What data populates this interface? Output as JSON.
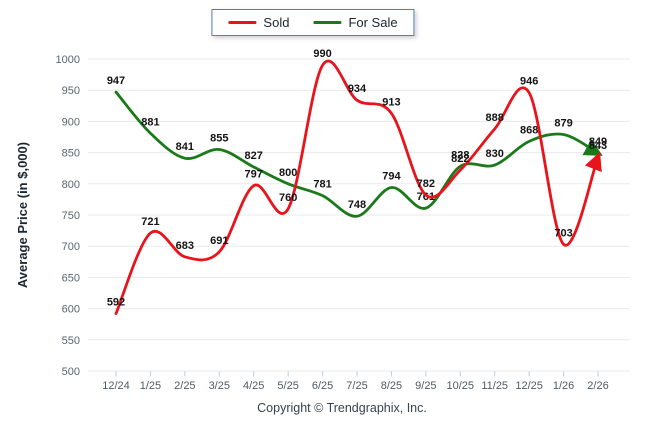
{
  "legend": {
    "items": [
      {
        "label": "Sold",
        "color": "#e8131b"
      },
      {
        "label": "For Sale",
        "color": "#1a7a1a"
      }
    ]
  },
  "footer": {
    "copyright": "Copyright © Trendgraphix, Inc."
  },
  "chart_data": {
    "type": "line",
    "title": "",
    "xlabel": "",
    "ylabel": "Average Price (in $,000)",
    "ylim": [
      500,
      1000
    ],
    "ytick_step": 50,
    "grid": true,
    "legend_position": "top-center",
    "categories": [
      "12/24",
      "1/25",
      "2/25",
      "3/25",
      "4/25",
      "5/25",
      "6/25",
      "7/25",
      "8/25",
      "9/25",
      "10/25",
      "11/25",
      "12/25",
      "1/26",
      "2/26"
    ],
    "series": [
      {
        "name": "Sold",
        "color": "#e8131b",
        "values": [
          592,
          721,
          683,
          691,
          797,
          760,
          990,
          934,
          913,
          782,
          822,
          888,
          946,
          703,
          843
        ]
      },
      {
        "name": "For Sale",
        "color": "#1a7a1a",
        "values": [
          947,
          881,
          841,
          855,
          827,
          800,
          781,
          748,
          794,
          761,
          828,
          830,
          868,
          879,
          849
        ]
      }
    ]
  }
}
